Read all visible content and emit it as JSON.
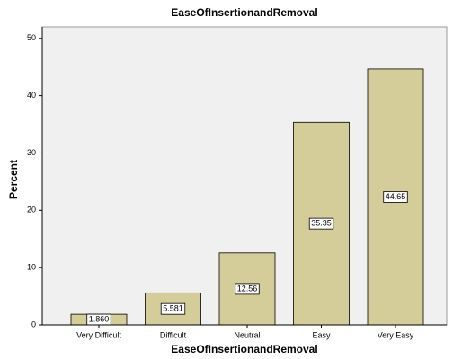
{
  "chart_data": {
    "type": "bar",
    "title": "EaseOfInsertionandRemoval",
    "x_label": "EaseOfInsertionandRemoval",
    "y_label": "Percent",
    "categories": [
      "Very Difficult",
      "Difficult",
      "Neutral",
      "Easy",
      "Very Easy"
    ],
    "values": [
      1.86,
      5.581,
      12.56,
      35.35,
      44.65
    ],
    "value_labels": [
      "1.860",
      "5.581",
      "12.56",
      "35.35",
      "44.65"
    ],
    "color": "#d4cd99",
    "ylim": [
      0,
      52
    ],
    "yticks": [
      0,
      10,
      20,
      30,
      40,
      50
    ]
  }
}
